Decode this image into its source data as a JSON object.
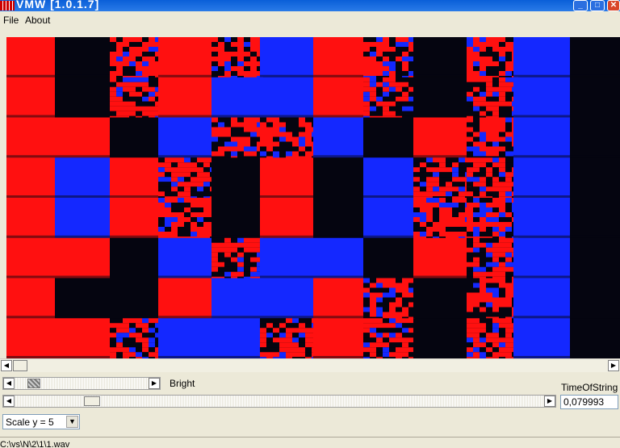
{
  "window": {
    "title": "VMW [1.0.1.7]"
  },
  "menu": {
    "items": [
      "File",
      "About"
    ]
  },
  "controls": {
    "bright_label": "Bright",
    "time_label": "TimeOfString",
    "time_value": "0,079993",
    "scale_value": "Scale y = 5",
    "bright_slider_fraction": 0.12,
    "time_slider_fraction": 0.16
  },
  "status": {
    "path": "C:\\vs\\N\\2\\1\\1.wav"
  },
  "colors": {
    "red": "#FF1010",
    "blue": "#1428FF",
    "black": "#050510"
  }
}
